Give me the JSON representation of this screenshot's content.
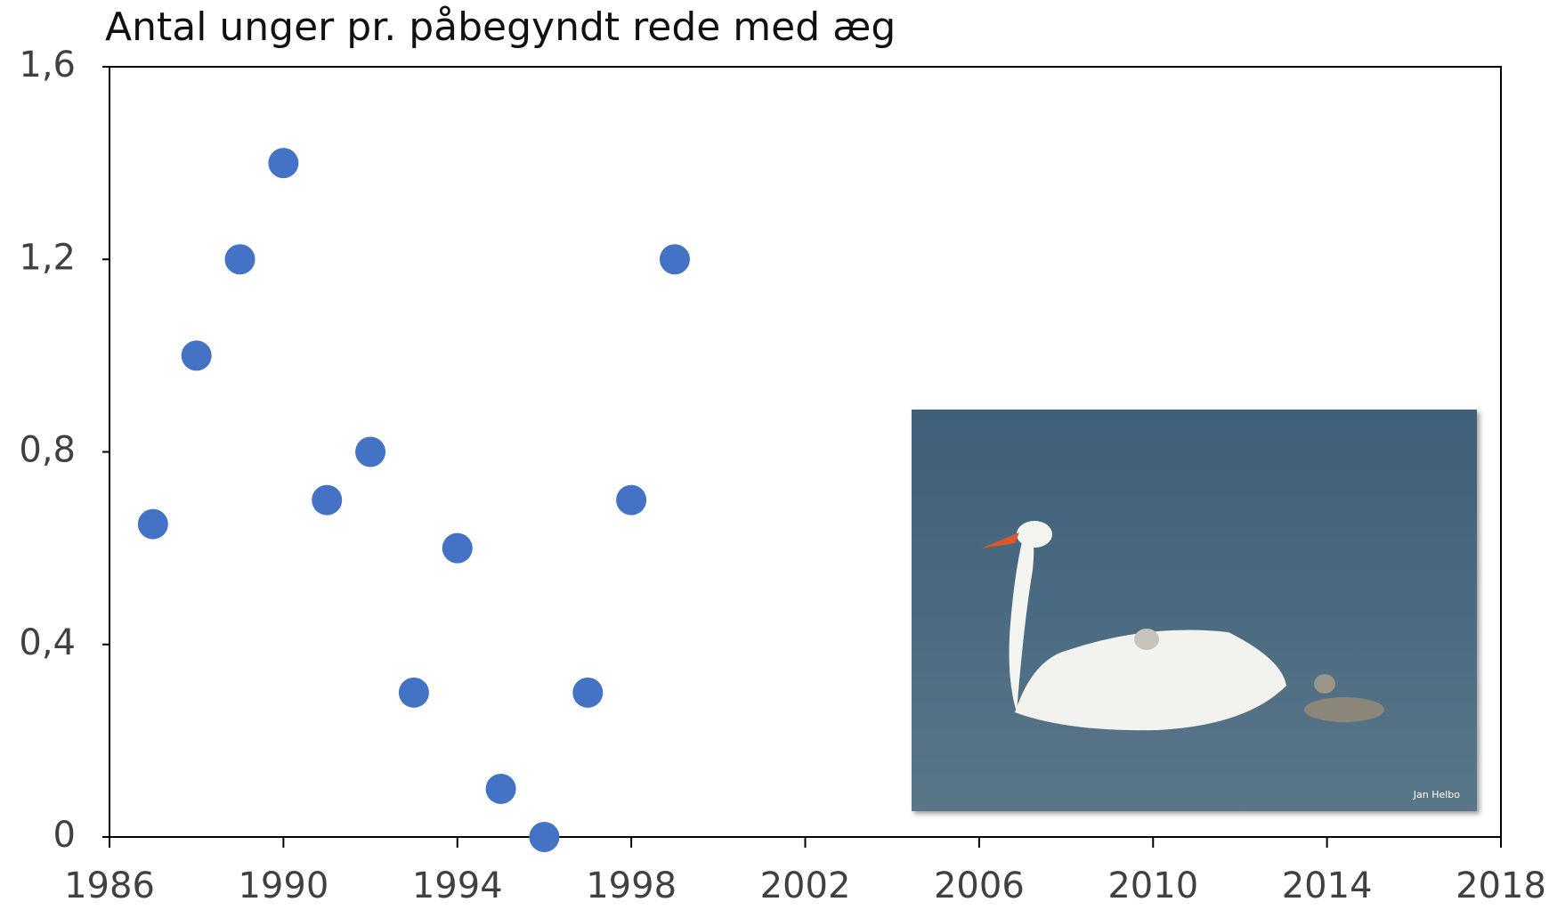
{
  "chart_data": {
    "type": "scatter",
    "title": "Antal unger pr. påbegyndt rede med æg",
    "x": [
      1987,
      1988,
      1989,
      1990,
      1991,
      1992,
      1993,
      1994,
      1995,
      1996,
      1997,
      1998,
      1999
    ],
    "series": [
      {
        "color": "#4472c4",
        "values": [
          0.65,
          1.0,
          1.2,
          1.4,
          0.7,
          0.8,
          0.3,
          0.6,
          0.1,
          0,
          0.3,
          0.7,
          1.2
        ]
      }
    ],
    "xlim": [
      1986,
      2018
    ],
    "xticks": [
      1986,
      1990,
      1994,
      1998,
      2002,
      2006,
      2010,
      2014,
      2018
    ],
    "ylim": [
      0,
      1.6
    ],
    "yticks": [
      0,
      {
        "value": 0.4,
        "label": "0,4"
      },
      {
        "value": 0.8,
        "label": "0,8"
      },
      {
        "value": 1.2,
        "label": "1,2"
      },
      {
        "value": 1.6,
        "label": "1,6"
      }
    ],
    "grid": false
  },
  "image_credit": "Jan Helbo"
}
